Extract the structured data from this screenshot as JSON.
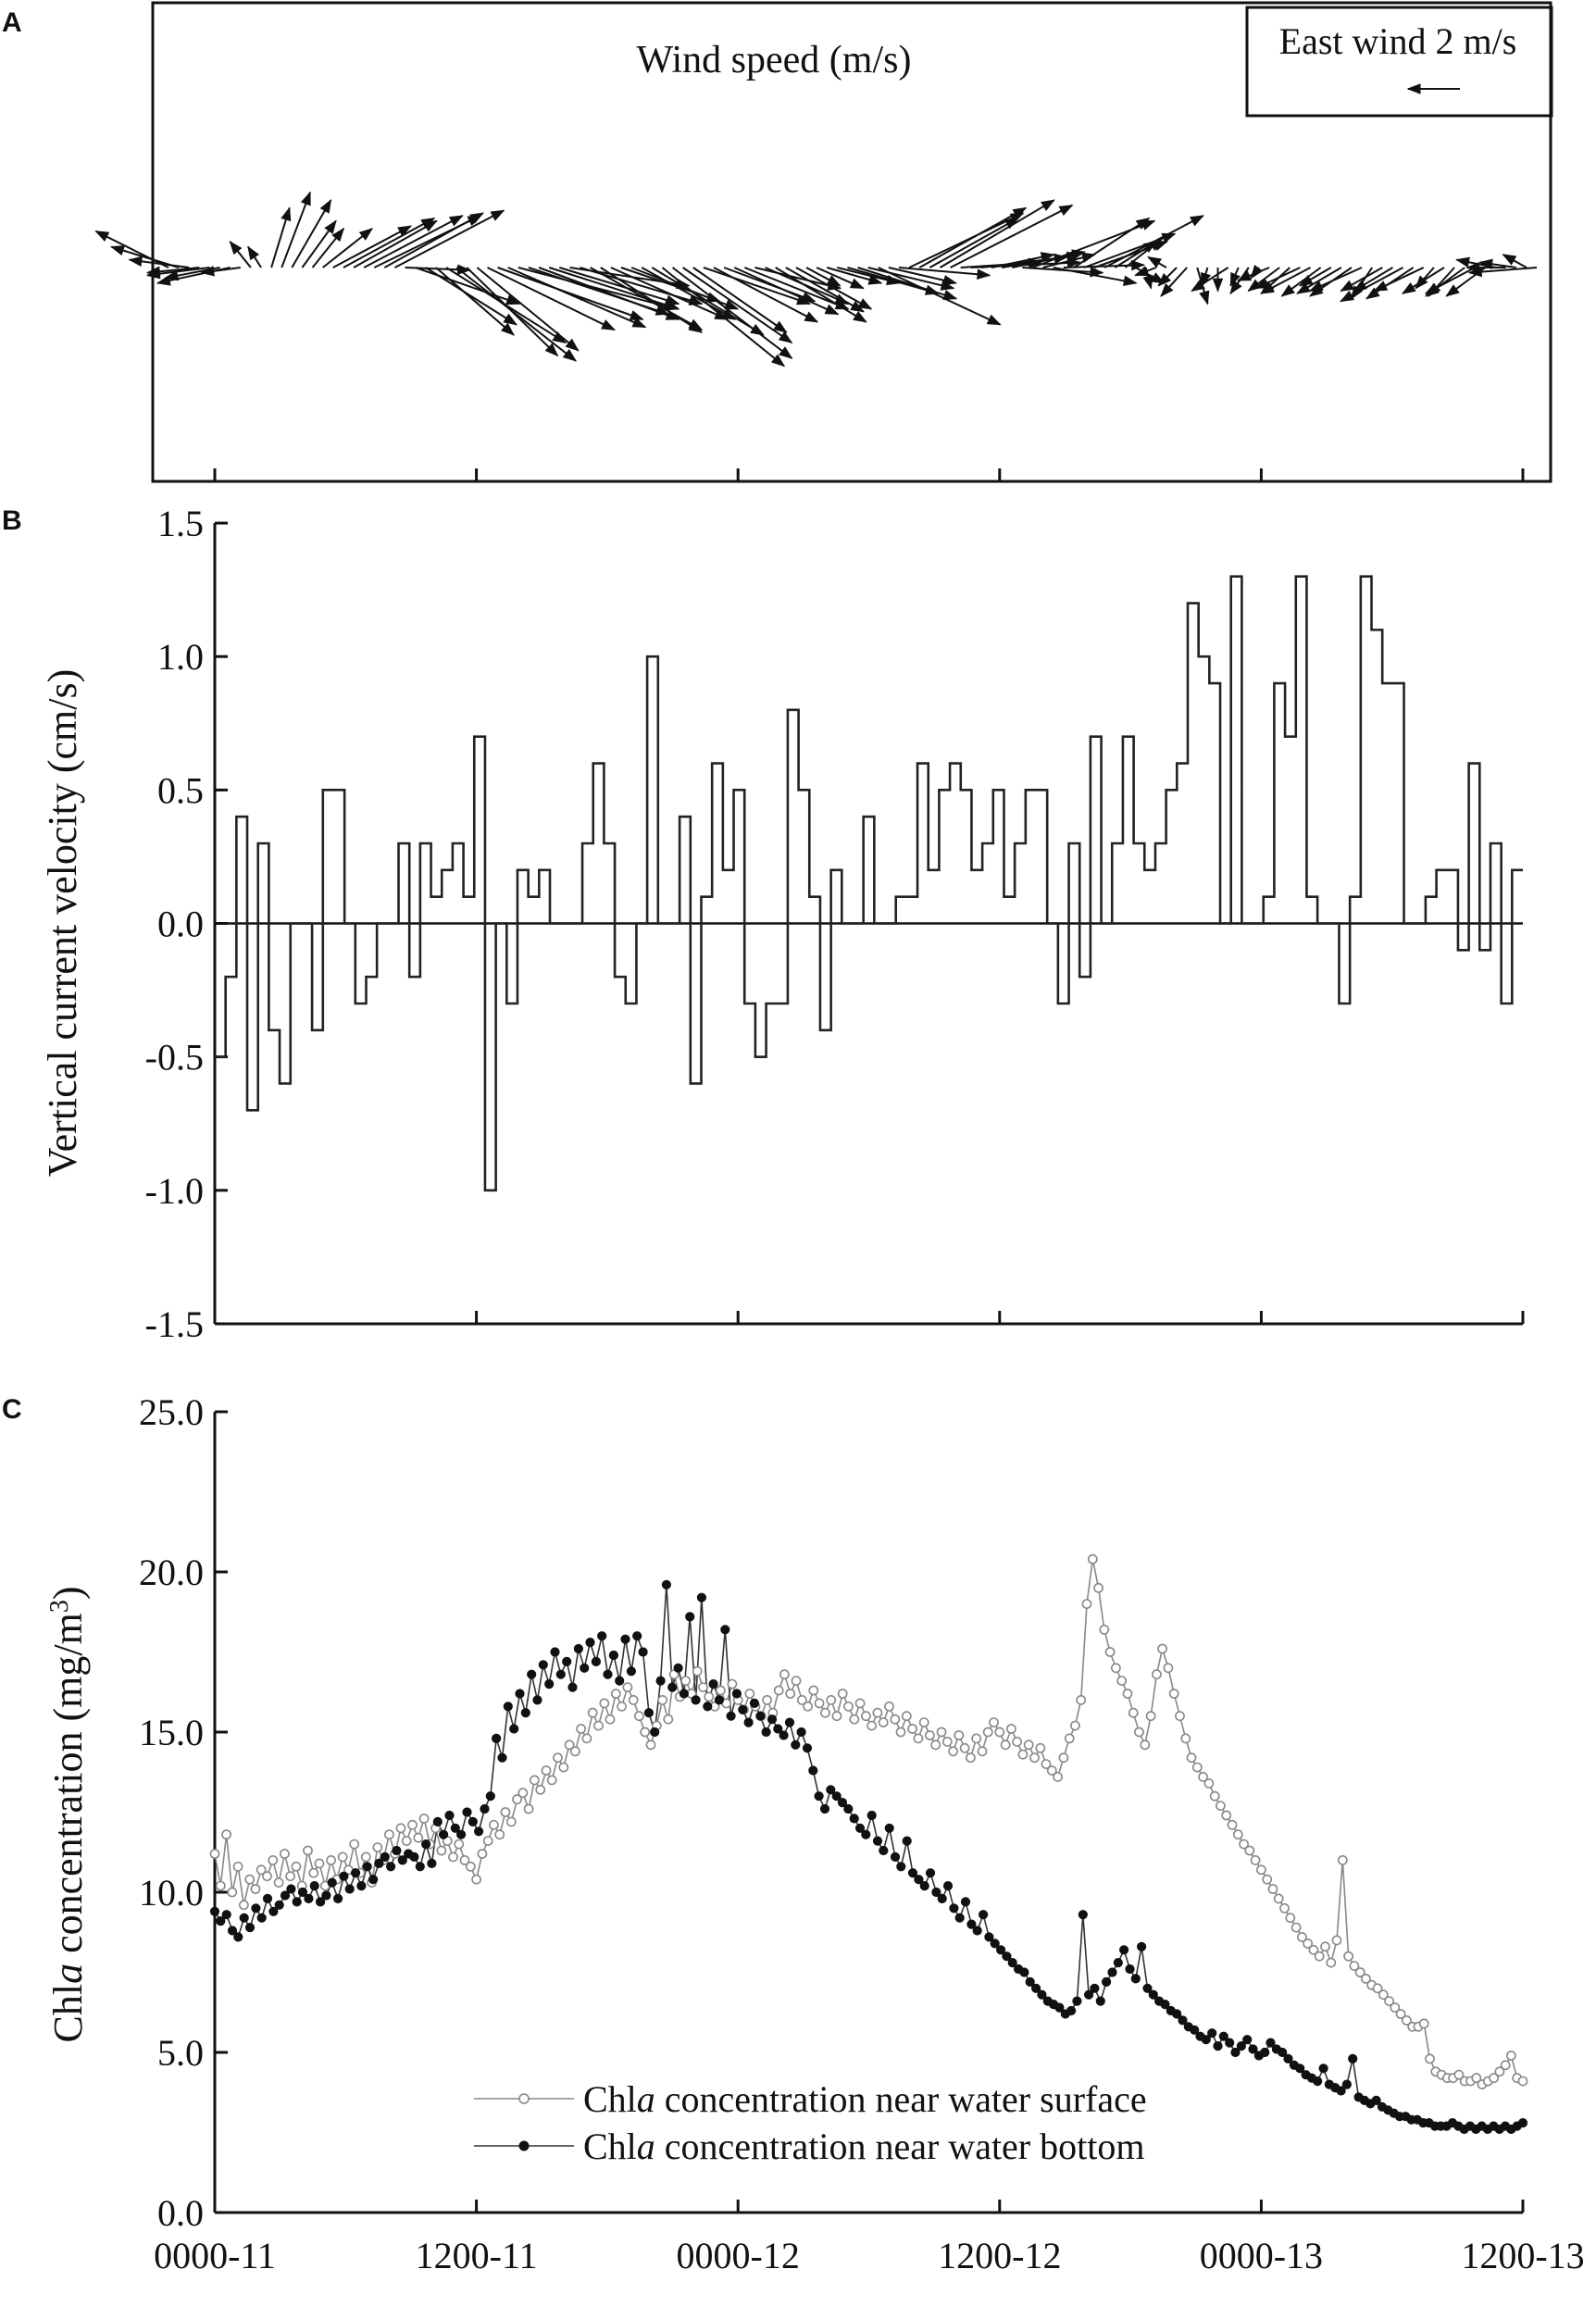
{
  "panels": {
    "a": {
      "letter": "A",
      "title": "Wind speed (m/s)",
      "legend_label": "East wind 2 m/s"
    },
    "b": {
      "letter": "B",
      "ylabel": "Vertical current velocity (cm/s)"
    },
    "c": {
      "letter": "C",
      "ylabel_prefix": "Chl",
      "ylabel_italic": "a",
      "ylabel_main": " concentration (mg/m",
      "ylabel_sup": "3",
      "ylabel_close": ")"
    }
  },
  "x_ticks": [
    "0000-11",
    "1200-11",
    "0000-12",
    "1200-12",
    "0000-13",
    "1200-13"
  ],
  "legend": {
    "surface": {
      "prefix": "Chl",
      "italic": "a",
      "rest": " concentration near water surface"
    },
    "bottom": {
      "prefix": "Chl",
      "italic": "a",
      "rest": " concentration near water bottom"
    }
  },
  "colors": {
    "axis": "#111111",
    "surface_series": "#888888",
    "bottom_series": "#111111"
  },
  "chart_data": [
    {
      "type": "vector",
      "title": "Wind speed (m/s)",
      "reference_vector": {
        "label": "East wind 2 m/s",
        "speed": 2
      },
      "x_range": [
        "0000-11",
        "1200-13"
      ],
      "vectors_uv": [
        [
          -2.8,
          1.4
        ],
        [
          -2.6,
          0.8
        ],
        [
          -2.3,
          0.3
        ],
        [
          -2.0,
          -0.2
        ],
        [
          -2.4,
          -0.3
        ],
        [
          -2.1,
          -0.4
        ],
        [
          -2.8,
          -0.6
        ],
        [
          -1.5,
          -0.2
        ],
        [
          -0.8,
          1.0
        ],
        [
          -0.5,
          0.8
        ],
        [
          0.7,
          2.3
        ],
        [
          1.1,
          2.9
        ],
        [
          1.5,
          2.6
        ],
        [
          1.3,
          1.8
        ],
        [
          1.2,
          1.5
        ],
        [
          1.9,
          1.5
        ],
        [
          3.0,
          1.6
        ],
        [
          3.5,
          1.9
        ],
        [
          3.2,
          1.8
        ],
        [
          3.8,
          2.0
        ],
        [
          4.1,
          2.0
        ],
        [
          3.8,
          2.1
        ],
        [
          4.2,
          2.2
        ],
        [
          2.5,
          -0.1
        ],
        [
          4.0,
          -1.4
        ],
        [
          3.5,
          -2.2
        ],
        [
          3.0,
          -2.6
        ],
        [
          4.6,
          -2.9
        ],
        [
          4.6,
          -3.6
        ],
        [
          3.5,
          -3.4
        ],
        [
          3.9,
          -3.2
        ],
        [
          4.9,
          -2.4
        ],
        [
          5.6,
          -2.0
        ],
        [
          5.3,
          -2.3
        ],
        [
          6.1,
          -1.6
        ],
        [
          5.4,
          -1.8
        ],
        [
          5.4,
          -2.0
        ],
        [
          5.0,
          -1.6
        ],
        [
          4.6,
          -1.4
        ],
        [
          4.6,
          -0.7
        ],
        [
          4.7,
          -1.4
        ],
        [
          4.3,
          -2.4
        ],
        [
          3.9,
          -2.5
        ],
        [
          4.5,
          -2.0
        ],
        [
          3.8,
          -1.3
        ],
        [
          4.1,
          -1.6
        ],
        [
          3.6,
          -2.0
        ],
        [
          4.3,
          -2.6
        ],
        [
          4.7,
          -3.8
        ],
        [
          4.6,
          -3.5
        ],
        [
          4.2,
          -2.9
        ],
        [
          3.6,
          -2.5
        ],
        [
          4.1,
          -1.4
        ],
        [
          4.0,
          -2.1
        ],
        [
          3.5,
          -1.3
        ],
        [
          4.0,
          -1.8
        ],
        [
          4.0,
          -1.6
        ],
        [
          3.3,
          -0.8
        ],
        [
          3.2,
          -1.4
        ],
        [
          3.5,
          -2.1
        ],
        [
          3.0,
          -1.7
        ],
        [
          2.9,
          -1.6
        ],
        [
          1.3,
          -0.7
        ],
        [
          1.8,
          -0.8
        ],
        [
          2.1,
          -0.6
        ],
        [
          2.4,
          -0.6
        ],
        [
          3.5,
          -1.0
        ],
        [
          3.8,
          -1.2
        ],
        [
          3.3,
          -0.8
        ],
        [
          4.7,
          -2.2
        ],
        [
          2.6,
          -0.6
        ],
        [
          3.5,
          -0.3
        ],
        [
          4.4,
          2.1
        ],
        [
          4.1,
          2.3
        ],
        [
          3.4,
          1.9
        ],
        [
          4.4,
          2.6
        ],
        [
          4.7,
          2.4
        ],
        [
          3.1,
          0.2
        ],
        [
          4.2,
          0.2
        ],
        [
          3.3,
          0.4
        ],
        [
          2.4,
          0.5
        ],
        [
          3.0,
          0.5
        ],
        [
          2.8,
          0.6
        ],
        [
          3.1,
          -0.2
        ],
        [
          4.7,
          1.8
        ],
        [
          2.0,
          0.5
        ],
        [
          3.2,
          -0.6
        ],
        [
          3.1,
          0.1
        ],
        [
          2.9,
          1.9
        ],
        [
          3.5,
          1.3
        ],
        [
          2.8,
          1.0
        ],
        [
          3.8,
          2.0
        ],
        [
          1.6,
          1.0
        ],
        [
          1.4,
          1.1
        ],
        [
          1.1,
          -0.6
        ],
        [
          0.2,
          -0.8
        ],
        [
          -0.8,
          -0.3
        ],
        [
          -0.7,
          0.4
        ],
        [
          -0.7,
          -0.7
        ],
        [
          -1.0,
          -1.1
        ],
        [
          0.4,
          -1.4
        ],
        [
          -0.2,
          -0.7
        ],
        [
          0.0,
          -0.9
        ],
        [
          -1.4,
          -0.9
        ],
        [
          -0.3,
          -0.7
        ],
        [
          -0.7,
          -1.0
        ],
        [
          -0.3,
          -0.4
        ],
        [
          -1.2,
          -0.5
        ],
        [
          -1.2,
          -0.9
        ],
        [
          -1.1,
          -1.0
        ],
        [
          -1.7,
          -0.8
        ],
        [
          -1.9,
          -1.0
        ],
        [
          -1.5,
          -1.1
        ],
        [
          -1.2,
          -0.7
        ],
        [
          -1.7,
          -1.0
        ],
        [
          -1.6,
          -1.1
        ],
        [
          -2.0,
          -0.9
        ],
        [
          -0.8,
          -1.2
        ],
        [
          -1.6,
          -0.9
        ],
        [
          -1.5,
          -0.9
        ],
        [
          -2.4,
          -1.3
        ],
        [
          -1.8,
          -1.2
        ],
        [
          -1.9,
          -0.9
        ],
        [
          -0.7,
          -0.8
        ],
        [
          -1.6,
          -1.0
        ],
        [
          -1.0,
          -1.1
        ],
        [
          -1.5,
          -1.1
        ],
        [
          -1.9,
          -1.0
        ],
        [
          -1.5,
          -1.1
        ],
        [
          -1.5,
          0.3
        ],
        [
          -1.5,
          0.0
        ],
        [
          -1.4,
          0.2
        ],
        [
          -0.9,
          0.5
        ],
        [
          -2.6,
          -0.2
        ]
      ]
    },
    {
      "type": "step",
      "ylabel": "Vertical current velocity (cm/s)",
      "ylim": [
        -1.5,
        1.5
      ],
      "yticks": [
        -1.5,
        -1.0,
        -0.5,
        0.0,
        0.5,
        1.0,
        1.5
      ],
      "x_range": [
        "0000-11",
        "1200-13"
      ],
      "values": [
        -0.5,
        -0.2,
        0.4,
        -0.7,
        0.3,
        -0.4,
        -0.6,
        0.0,
        0.0,
        -0.4,
        0.5,
        0.5,
        0.0,
        -0.3,
        -0.2,
        0.0,
        0.0,
        0.3,
        -0.2,
        0.3,
        0.1,
        0.2,
        0.3,
        0.1,
        0.7,
        -1.0,
        0.0,
        -0.3,
        0.2,
        0.1,
        0.2,
        0.0,
        0.0,
        0.0,
        0.3,
        0.6,
        0.3,
        -0.2,
        -0.3,
        0.0,
        1.0,
        0.0,
        0.0,
        0.4,
        -0.6,
        0.1,
        0.6,
        0.2,
        0.5,
        -0.3,
        -0.5,
        -0.3,
        -0.3,
        0.8,
        0.5,
        0.1,
        -0.4,
        0.2,
        0.0,
        0.0,
        0.4,
        0.0,
        0.0,
        0.1,
        0.1,
        0.6,
        0.2,
        0.5,
        0.6,
        0.5,
        0.2,
        0.3,
        0.5,
        0.1,
        0.3,
        0.5,
        0.5,
        0.0,
        -0.3,
        0.3,
        -0.2,
        0.7,
        0.0,
        0.3,
        0.7,
        0.3,
        0.2,
        0.3,
        0.5,
        0.6,
        1.2,
        1.0,
        0.9,
        0.0,
        1.3,
        0.0,
        0.0,
        0.1,
        0.9,
        0.7,
        1.3,
        0.1,
        0.0,
        0.0,
        -0.3,
        0.1,
        1.3,
        1.1,
        0.9,
        0.9,
        0.0,
        0.0,
        0.1,
        0.2,
        0.2,
        -0.1,
        0.6,
        -0.1,
        0.3,
        -0.3,
        0.2
      ]
    },
    {
      "type": "line",
      "ylabel": "Chla concentration (mg/m3)",
      "ylim": [
        0.0,
        25.0
      ],
      "yticks": [
        0.0,
        5.0,
        10.0,
        15.0,
        20.0,
        25.0
      ],
      "x_range": [
        "0000-11",
        "1200-13"
      ],
      "series": [
        {
          "name": "Chla concentration near water surface",
          "marker": "open-circle",
          "values": [
            11.2,
            10.2,
            11.8,
            10.0,
            10.8,
            9.6,
            10.4,
            10.1,
            10.7,
            10.5,
            11.0,
            10.3,
            11.2,
            10.5,
            10.8,
            10.2,
            11.3,
            10.6,
            10.9,
            10.2,
            11.0,
            10.4,
            11.1,
            10.7,
            11.5,
            10.6,
            11.1,
            10.3,
            11.4,
            11.0,
            11.8,
            11.2,
            12.0,
            11.6,
            12.1,
            11.7,
            12.3,
            11.5,
            12.0,
            11.3,
            11.6,
            11.1,
            11.5,
            11.0,
            10.8,
            10.4,
            11.2,
            11.6,
            12.1,
            11.8,
            12.5,
            12.2,
            12.9,
            13.1,
            12.6,
            13.5,
            13.2,
            13.8,
            13.5,
            14.2,
            13.9,
            14.6,
            14.4,
            15.1,
            14.8,
            15.6,
            15.2,
            15.9,
            15.4,
            16.2,
            15.8,
            16.4,
            16.0,
            15.5,
            15.0,
            14.6,
            15.2,
            16.0,
            15.4,
            16.8,
            16.1,
            16.6,
            16.2,
            16.9,
            16.4,
            16.1,
            15.8,
            16.3,
            15.9,
            16.5,
            16.0,
            15.7,
            16.2,
            15.8,
            15.5,
            16.0,
            15.6,
            16.3,
            16.8,
            16.2,
            16.6,
            16.0,
            15.8,
            16.3,
            15.9,
            15.6,
            16.0,
            15.5,
            16.2,
            15.8,
            15.4,
            15.9,
            15.5,
            15.2,
            15.6,
            15.3,
            15.8,
            15.4,
            15.0,
            15.5,
            15.1,
            14.8,
            15.3,
            14.9,
            14.6,
            15.0,
            14.7,
            14.4,
            14.9,
            14.5,
            14.2,
            14.8,
            14.4,
            15.0,
            15.3,
            15.0,
            14.6,
            15.1,
            14.7,
            14.3,
            14.6,
            14.2,
            14.5,
            14.0,
            13.8,
            13.6,
            14.2,
            14.8,
            15.2,
            16.0,
            19.0,
            20.4,
            19.5,
            18.2,
            17.5,
            17.0,
            16.6,
            16.2,
            15.6,
            15.0,
            14.6,
            15.5,
            16.8,
            17.6,
            17.0,
            16.2,
            15.5,
            14.8,
            14.2,
            13.9,
            13.6,
            13.4,
            13.0,
            12.7,
            12.4,
            12.1,
            11.8,
            11.5,
            11.3,
            11.0,
            10.7,
            10.4,
            10.1,
            9.8,
            9.5,
            9.2,
            8.9,
            8.6,
            8.4,
            8.2,
            8.0,
            8.3,
            7.8,
            8.5,
            11.0,
            8.0,
            7.7,
            7.5,
            7.3,
            7.1,
            7.0,
            6.8,
            6.6,
            6.4,
            6.2,
            6.0,
            5.8,
            5.8,
            5.9,
            4.8,
            4.4,
            4.3,
            4.2,
            4.2,
            4.3,
            4.1,
            4.1,
            4.2,
            4.0,
            4.1,
            4.2,
            4.4,
            4.6,
            4.9,
            4.2,
            4.1
          ]
        },
        {
          "name": "Chla concentration near water bottom",
          "marker": "filled-circle",
          "values": [
            9.4,
            9.1,
            9.3,
            8.8,
            8.6,
            9.2,
            8.9,
            9.5,
            9.2,
            9.8,
            9.4,
            9.6,
            9.9,
            10.1,
            9.7,
            10.0,
            9.8,
            10.2,
            9.7,
            9.9,
            10.3,
            9.8,
            10.5,
            10.1,
            10.6,
            10.2,
            10.8,
            10.4,
            10.9,
            11.1,
            10.8,
            11.3,
            11.0,
            11.2,
            11.1,
            10.8,
            11.5,
            10.9,
            12.2,
            11.8,
            12.4,
            12.0,
            11.8,
            12.5,
            12.2,
            11.9,
            12.6,
            13.0,
            14.8,
            14.2,
            15.8,
            15.1,
            16.2,
            15.6,
            16.8,
            16.0,
            17.1,
            16.5,
            17.5,
            16.8,
            17.2,
            16.4,
            17.6,
            17.0,
            17.8,
            17.2,
            18.0,
            16.8,
            17.4,
            16.6,
            17.9,
            16.9,
            18.0,
            17.5,
            15.6,
            15.0,
            16.6,
            19.6,
            16.4,
            17.0,
            16.2,
            18.6,
            16.0,
            19.2,
            15.8,
            16.5,
            16.0,
            18.2,
            15.5,
            16.2,
            15.7,
            15.3,
            15.9,
            15.5,
            15.0,
            15.4,
            15.1,
            14.9,
            15.3,
            14.6,
            15.0,
            14.5,
            13.8,
            13.0,
            12.6,
            13.2,
            13.0,
            12.8,
            12.6,
            12.3,
            12.0,
            11.8,
            12.4,
            11.6,
            11.3,
            12.0,
            11.1,
            10.8,
            11.6,
            10.6,
            10.4,
            10.2,
            10.6,
            10.0,
            9.8,
            10.2,
            9.5,
            9.2,
            9.7,
            9.0,
            8.8,
            9.3,
            8.6,
            8.4,
            8.2,
            8.0,
            7.8,
            7.6,
            7.5,
            7.2,
            7.0,
            6.8,
            6.6,
            6.5,
            6.4,
            6.2,
            6.3,
            6.6,
            9.3,
            6.8,
            7.0,
            6.6,
            7.2,
            7.5,
            7.8,
            8.2,
            7.6,
            7.3,
            8.3,
            7.0,
            6.8,
            6.6,
            6.5,
            6.3,
            6.2,
            6.0,
            5.8,
            5.7,
            5.5,
            5.4,
            5.6,
            5.2,
            5.5,
            5.3,
            5.0,
            5.2,
            5.4,
            5.1,
            4.9,
            5.0,
            5.3,
            5.1,
            5.0,
            4.8,
            4.6,
            4.5,
            4.3,
            4.2,
            4.1,
            4.5,
            4.0,
            3.9,
            3.8,
            4.0,
            4.8,
            3.6,
            3.5,
            3.4,
            3.5,
            3.3,
            3.2,
            3.1,
            3.0,
            3.0,
            2.9,
            2.9,
            2.8,
            2.8,
            2.7,
            2.7,
            2.7,
            2.8,
            2.7,
            2.6,
            2.7,
            2.6,
            2.7,
            2.6,
            2.7,
            2.6,
            2.7,
            2.6,
            2.7,
            2.8
          ]
        }
      ]
    }
  ]
}
